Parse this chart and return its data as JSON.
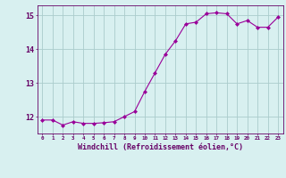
{
  "x": [
    0,
    1,
    2,
    3,
    4,
    5,
    6,
    7,
    8,
    9,
    10,
    11,
    12,
    13,
    14,
    15,
    16,
    17,
    18,
    19,
    20,
    21,
    22,
    23
  ],
  "y": [
    11.9,
    11.9,
    11.75,
    11.85,
    11.8,
    11.8,
    11.82,
    11.85,
    12.0,
    12.15,
    12.75,
    13.3,
    13.85,
    14.25,
    14.75,
    14.8,
    15.05,
    15.08,
    15.05,
    14.75,
    14.85,
    14.65,
    14.65,
    14.95
  ],
  "line_color": "#990099",
  "marker": "D",
  "marker_size": 2.0,
  "bg_color": "#d8f0f0",
  "grid_color": "#aacccc",
  "tick_color": "#660066",
  "xlabel": "Windchill (Refroidissement éolien,°C)",
  "xlabel_fontsize": 6,
  "ylabel_ticks": [
    12,
    13,
    14,
    15
  ],
  "xtick_labels": [
    "0",
    "1",
    "2",
    "3",
    "4",
    "5",
    "6",
    "7",
    "8",
    "9",
    "10",
    "11",
    "12",
    "13",
    "14",
    "15",
    "16",
    "17",
    "18",
    "19",
    "20",
    "21",
    "22",
    "23"
  ],
  "xlim": [
    -0.5,
    23.5
  ],
  "ylim": [
    11.5,
    15.3
  ]
}
